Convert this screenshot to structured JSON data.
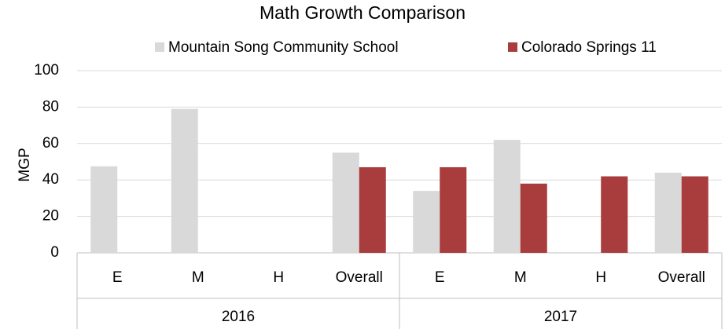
{
  "chart_data": {
    "type": "bar",
    "title": "Math Growth Comparison",
    "y_label": "MGP",
    "category_groups": [
      {
        "name": "2016",
        "categories": [
          "E",
          "M",
          "H",
          "Overall"
        ]
      },
      {
        "name": "2017",
        "categories": [
          "E",
          "M",
          "H",
          "Overall"
        ]
      }
    ],
    "series": [
      {
        "name": "Mountain Song Community School",
        "color": "#d9d9d9",
        "values": [
          47.5,
          79,
          null,
          55,
          34,
          62,
          null,
          44
        ]
      },
      {
        "name": "Colorado Springs 11",
        "color": "#a93c3c",
        "values": [
          null,
          null,
          null,
          47,
          47,
          38,
          42,
          42
        ]
      }
    ],
    "ylim": [
      0,
      100
    ],
    "yticks": [
      0,
      20,
      40,
      60,
      80,
      100
    ],
    "grid": true,
    "legend": "top"
  }
}
